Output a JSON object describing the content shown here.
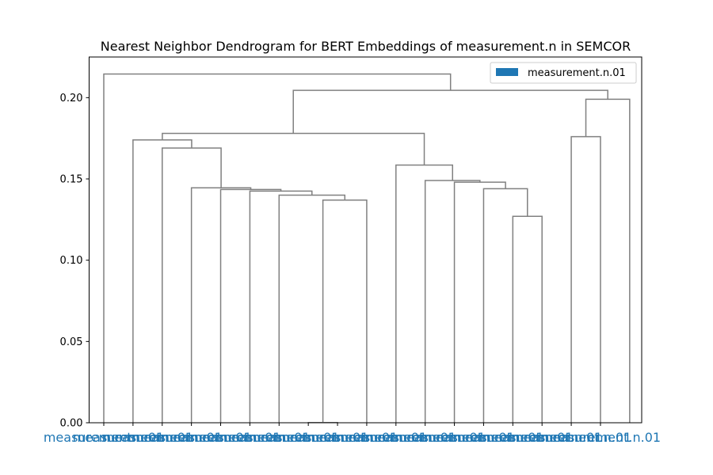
{
  "chart_data": {
    "type": "dendrogram",
    "title": "Nearest Neighbor Dendrogram for BERT Embeddings of measurement.n in SEMCOR",
    "xlabel": "",
    "ylabel": "",
    "ylim": [
      0,
      0.225
    ],
    "yticks": [
      0.0,
      0.05,
      0.1,
      0.15,
      0.2
    ],
    "ytick_labels": [
      "0.00",
      "0.05",
      "0.10",
      "0.15",
      "0.20"
    ],
    "grid": false,
    "legend": {
      "placement": "upper right",
      "entries": [
        {
          "label": "measurement.n.01",
          "color": "#1f77b4"
        }
      ]
    },
    "colors": {
      "link": "#808080",
      "leaf_label": "#1f77b4"
    },
    "leaf_labels": [
      "measurement.n.01",
      "measurement.n.01",
      "measurement.n.01",
      "measurement.n.01",
      "measurement.n.01",
      "measurement.n.01",
      "measurement.n.01",
      "measurement.n.01",
      "measurement.n.01",
      "measurement.n.01",
      "measurement.n.01",
      "measurement.n.01",
      "measurement.n.01",
      "measurement.n.01",
      "measurement.n.01",
      "measurement.n.01",
      "measurement.n.01",
      "measurement.n.01"
    ],
    "links": [
      {
        "x": [
          14,
          14,
          15,
          15
        ],
        "y": [
          0,
          0.127,
          0.127,
          0
        ]
      },
      {
        "x": [
          13,
          13,
          14.5,
          14.5
        ],
        "y": [
          0,
          0.144,
          0.144,
          0.127
        ]
      },
      {
        "x": [
          12,
          12,
          13.75,
          13.75
        ],
        "y": [
          0,
          0.148,
          0.148,
          0.144
        ]
      },
      {
        "x": [
          11,
          11,
          12.875,
          12.875
        ],
        "y": [
          0,
          0.149,
          0.149,
          0.148
        ]
      },
      {
        "x": [
          10,
          10,
          11.9375,
          11.9375
        ],
        "y": [
          0,
          0.1585,
          0.1585,
          0.149
        ]
      },
      {
        "x": [
          7,
          7,
          8,
          8
        ],
        "y": [
          0,
          0.0001,
          0.0001,
          0
        ]
      },
      {
        "x": [
          9,
          9,
          7.5,
          7.5
        ],
        "y": [
          0,
          0.137,
          0.137,
          0.0001
        ]
      },
      {
        "x": [
          6,
          6,
          8.25,
          8.25
        ],
        "y": [
          0,
          0.14,
          0.14,
          0.137
        ]
      },
      {
        "x": [
          5,
          5,
          7.125,
          7.125
        ],
        "y": [
          0,
          0.1425,
          0.1425,
          0.14
        ]
      },
      {
        "x": [
          4,
          4,
          6.0625,
          6.0625
        ],
        "y": [
          0,
          0.1435,
          0.1435,
          0.1425
        ]
      },
      {
        "x": [
          3,
          3,
          5.03125,
          5.03125
        ],
        "y": [
          0,
          0.1445,
          0.1445,
          0.1435
        ]
      },
      {
        "x": [
          2,
          2,
          4.015625,
          4.015625
        ],
        "y": [
          0,
          0.169,
          0.169,
          0.1445
        ]
      },
      {
        "x": [
          1,
          1,
          3.0078125,
          3.0078125
        ],
        "y": [
          0,
          0.174,
          0.174,
          0.169
        ]
      },
      {
        "x": [
          10.96875,
          10.96875,
          2.00390625,
          2.00390625
        ],
        "y": [
          0.1585,
          0.178,
          0.178,
          0.174
        ]
      },
      {
        "x": [
          17,
          17,
          16,
          16
        ],
        "y": [
          0,
          0.176,
          0.176,
          0
        ]
      },
      {
        "x": [
          16.5,
          16.5,
          18,
          18
        ],
        "y": [
          0.176,
          0.199,
          0.199,
          0
        ]
      },
      {
        "x": [
          6.486328125,
          6.486328125,
          17.25,
          17.25
        ],
        "y": [
          0.178,
          0.2045,
          0.2045,
          0.199
        ]
      },
      {
        "x": [
          0,
          0,
          11.8681640625,
          11.8681640625
        ],
        "y": [
          0,
          0.2145,
          0.2145,
          0.2045
        ]
      }
    ]
  }
}
